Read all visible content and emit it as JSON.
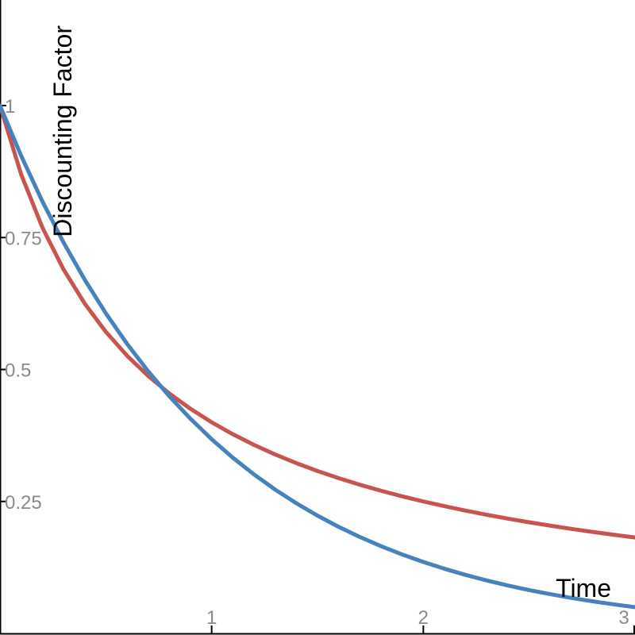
{
  "chart_data": {
    "type": "line",
    "title": "",
    "xlabel": "Time",
    "ylabel": "Discounting Factor",
    "xlim": [
      0,
      3
    ],
    "ylim": [
      0,
      1.2
    ],
    "grid": false,
    "legend": "none",
    "x_ticks": [
      {
        "value": 1,
        "label": "1"
      },
      {
        "value": 2,
        "label": "2"
      },
      {
        "value": 3,
        "label": "3"
      }
    ],
    "y_ticks": [
      {
        "value": 0.25,
        "label": "0.25"
      },
      {
        "value": 0.5,
        "label": "0.5"
      },
      {
        "value": 0.75,
        "label": "0.75"
      },
      {
        "value": 1,
        "label": "1"
      }
    ],
    "series": [
      {
        "color": "#c85450",
        "x": [
          0,
          0.1,
          0.2,
          0.3,
          0.4,
          0.5,
          0.6,
          0.7,
          0.8,
          0.9,
          1.0,
          1.1,
          1.2,
          1.3,
          1.4,
          1.5,
          1.6,
          1.7,
          1.8,
          1.9,
          2.0,
          2.1,
          2.2,
          2.3,
          2.4,
          2.5,
          2.6,
          2.7,
          2.8,
          2.9,
          3.0
        ],
        "y": [
          1.0,
          0.8696,
          0.7692,
          0.6897,
          0.625,
          0.5714,
          0.5263,
          0.4878,
          0.4545,
          0.4255,
          0.4,
          0.3774,
          0.3571,
          0.339,
          0.3226,
          0.3077,
          0.2941,
          0.2817,
          0.2703,
          0.2597,
          0.25,
          0.241,
          0.2326,
          0.2247,
          0.2174,
          0.2105,
          0.2041,
          0.198,
          0.1923,
          0.1869,
          0.1818
        ]
      },
      {
        "color": "#4682be",
        "x": [
          0,
          0.1,
          0.2,
          0.3,
          0.4,
          0.5,
          0.6,
          0.7,
          0.8,
          0.9,
          1.0,
          1.1,
          1.2,
          1.3,
          1.4,
          1.5,
          1.6,
          1.7,
          1.8,
          1.9,
          2.0,
          2.1,
          2.2,
          2.3,
          2.4,
          2.5,
          2.6,
          2.7,
          2.8,
          2.9,
          3.0
        ],
        "y": [
          1.0,
          0.9048,
          0.8187,
          0.7408,
          0.6703,
          0.6065,
          0.5488,
          0.4966,
          0.4493,
          0.4066,
          0.3679,
          0.3329,
          0.3012,
          0.2725,
          0.2466,
          0.2231,
          0.2019,
          0.1827,
          0.1653,
          0.1496,
          0.1353,
          0.1225,
          0.1108,
          0.1003,
          0.0907,
          0.0821,
          0.0743,
          0.0672,
          0.0608,
          0.055,
          0.0498
        ]
      }
    ]
  }
}
